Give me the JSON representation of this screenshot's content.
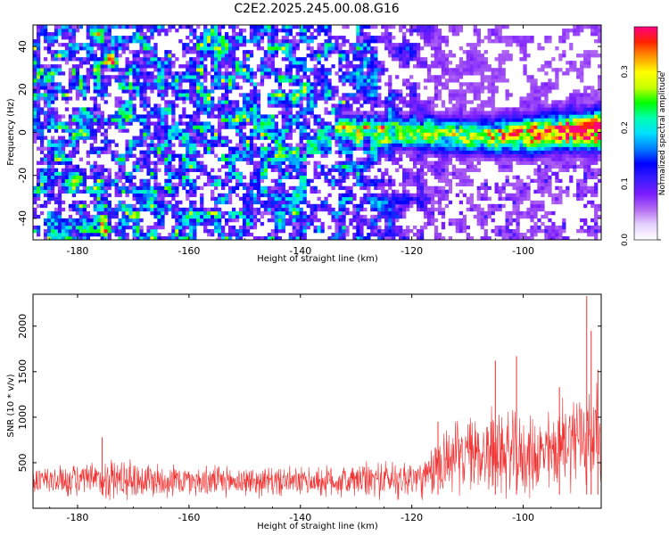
{
  "title": "C2E2.2025.245.00.08.G16",
  "chart_data": [
    {
      "type": "heatmap",
      "name": "spectrogram",
      "xlabel": "Height of straight line (km)",
      "ylabel": "Frequency (Hz)",
      "xlim": [
        -188,
        -86
      ],
      "ylim": [
        -50,
        50
      ],
      "xticks": [
        -180,
        -160,
        -140,
        -120,
        -100
      ],
      "xtick_labels": [
        "-180",
        "-160",
        "-140",
        "-120",
        "-100"
      ],
      "yticks": [
        -40,
        -20,
        0,
        20,
        40
      ],
      "ytick_labels": [
        "-40",
        "-20",
        "0",
        "20",
        "40"
      ],
      "colorbar": {
        "label": "Normalized spectral amplitude",
        "range": [
          0,
          0.38
        ],
        "ticks": [
          0.0,
          0.1,
          0.2,
          0.3
        ],
        "tick_labels": [
          "0.0",
          "0.1",
          "0.2",
          "0.3"
        ],
        "colors": [
          "#ffffff",
          "#e6d2ff",
          "#b46cf0",
          "#7a1cff",
          "#3b1cff",
          "#0000ff",
          "#0080ff",
          "#00e0ff",
          "#00ffb0",
          "#00ff00",
          "#c8ff00",
          "#ffff00",
          "#ff9900",
          "#ff2200",
          "#ff0080"
        ]
      },
      "features": {
        "signal_band_center_hz": [
          [
            -135,
            2
          ],
          [
            -125,
            0
          ],
          [
            -115,
            -1
          ],
          [
            -105,
            -2
          ],
          [
            -95,
            0
          ],
          [
            -87,
            1
          ]
        ],
        "signal_band_start_km": -134,
        "streaks": [
          {
            "x": [
              -177,
              -173
            ],
            "y": [
              50,
              28
            ]
          },
          {
            "x": [
              -176,
              -175
            ],
            "y": [
              -38,
              -50
            ]
          },
          {
            "x": [
              -188,
              -186
            ],
            "y": [
              36,
              20
            ]
          }
        ]
      }
    },
    {
      "type": "line",
      "name": "snr",
      "xlabel": "Height of straight line (km)",
      "ylabel": "SNR (10 * v/v)",
      "xlim": [
        -188,
        -86
      ],
      "ylim": [
        0,
        2350
      ],
      "xticks": [
        -180,
        -160,
        -140,
        -120,
        -100
      ],
      "xtick_labels": [
        "-180",
        "-160",
        "-140",
        "-120",
        "-100"
      ],
      "yticks": [
        500,
        1000,
        1500,
        2000
      ],
      "ytick_labels": [
        "500",
        "1000",
        "1500",
        "2000"
      ],
      "color": "#f03232",
      "envelope": {
        "x": [
          -188,
          -176,
          -175,
          -160,
          -140,
          -130,
          -125,
          -117,
          -115,
          -110,
          -105,
          -100,
          -95,
          -92,
          -90,
          -88,
          -87,
          -86
        ],
        "mean": [
          300,
          310,
          330,
          300,
          290,
          300,
          320,
          330,
          520,
          600,
          620,
          560,
          600,
          760,
          800,
          780,
          820,
          720
        ],
        "spread": [
          200,
          220,
          300,
          200,
          190,
          230,
          260,
          280,
          500,
          450,
          600,
          500,
          550,
          600,
          700,
          700,
          650,
          500
        ]
      },
      "peaks": [
        {
          "x": -175.6,
          "y": 780
        },
        {
          "x": -115.3,
          "y": 950
        },
        {
          "x": -105.0,
          "y": 1620
        },
        {
          "x": -101.2,
          "y": 1670
        },
        {
          "x": -93.5,
          "y": 1330
        },
        {
          "x": -88.6,
          "y": 2330
        },
        {
          "x": -87.8,
          "y": 1950
        },
        {
          "x": -86.6,
          "y": 1520
        }
      ]
    }
  ]
}
